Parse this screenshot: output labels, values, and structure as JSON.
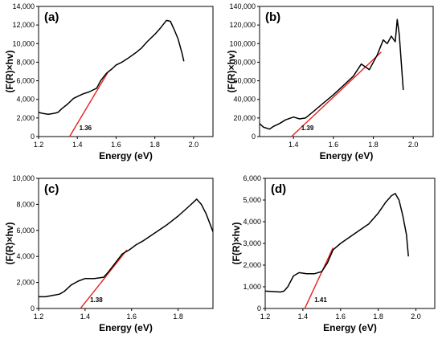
{
  "chart_data": [
    {
      "panel_label": "(a)",
      "type": "line",
      "xlabel": "Energy (eV)",
      "ylabel": "(F(R)×hv)",
      "xlim": [
        1.2,
        2.1
      ],
      "ylim": [
        0,
        14000
      ],
      "xticks": [
        1.2,
        1.4,
        1.6,
        1.8,
        2.0
      ],
      "xtick_labels": [
        "1.2",
        "1.4",
        "1.6",
        "1.8",
        "2.0"
      ],
      "yticks": [
        0,
        2000,
        4000,
        6000,
        8000,
        10000,
        12000,
        14000
      ],
      "ytick_labels": [
        "0",
        "2,000",
        "4,000",
        "6,000",
        "8,000",
        "10,000",
        "12,000",
        "14,000"
      ],
      "series": [
        {
          "x": [
            1.2,
            1.22,
            1.25,
            1.28,
            1.3,
            1.32,
            1.35,
            1.38,
            1.4,
            1.43,
            1.46,
            1.5,
            1.52,
            1.55,
            1.58,
            1.6,
            1.63,
            1.66,
            1.7,
            1.73,
            1.76,
            1.8,
            1.83,
            1.86,
            1.88,
            1.9,
            1.92,
            1.94,
            1.95
          ],
          "y": [
            2600,
            2500,
            2400,
            2500,
            2600,
            3000,
            3500,
            4100,
            4300,
            4600,
            4800,
            5200,
            6000,
            6800,
            7300,
            7700,
            8000,
            8400,
            9000,
            9500,
            10200,
            11000,
            11700,
            12500,
            12400,
            11500,
            10500,
            9000,
            8100
          ]
        }
      ],
      "fit": {
        "x": [
          1.36,
          1.56
        ],
        "y": [
          0,
          7000
        ]
      },
      "annotation": "1.36"
    },
    {
      "panel_label": "(b)",
      "type": "line",
      "xlabel": "Energy (eV)",
      "ylabel": "(F(R)×hv)",
      "xlim": [
        1.23,
        2.1
      ],
      "ylim": [
        0,
        140000
      ],
      "xticks": [
        1.4,
        1.6,
        1.8,
        2.0
      ],
      "xtick_labels": [
        "1.4",
        "1.6",
        "1.8",
        "2.0"
      ],
      "yticks": [
        0,
        20000,
        40000,
        60000,
        80000,
        100000,
        120000,
        140000
      ],
      "ytick_labels": [
        "0",
        "20,000",
        "40,000",
        "60,000",
        "80,000",
        "100,000",
        "120,000",
        "140,000"
      ],
      "series": [
        {
          "x": [
            1.23,
            1.25,
            1.28,
            1.3,
            1.33,
            1.36,
            1.4,
            1.43,
            1.46,
            1.5,
            1.55,
            1.6,
            1.65,
            1.7,
            1.74,
            1.78,
            1.82,
            1.85,
            1.87,
            1.89,
            1.91,
            1.92,
            1.93,
            1.94,
            1.95
          ],
          "y": [
            14000,
            10000,
            8000,
            11000,
            14000,
            18000,
            21000,
            19000,
            20000,
            27000,
            36000,
            45000,
            55000,
            65000,
            78000,
            72000,
            88000,
            104000,
            100000,
            108000,
            102000,
            126000,
            110000,
            80000,
            50000
          ]
        }
      ],
      "fit": {
        "x": [
          1.39,
          1.84
        ],
        "y": [
          0,
          91000
        ]
      },
      "annotation": "1.39"
    },
    {
      "panel_label": "(c)",
      "type": "line",
      "xlabel": "Energy (eV)",
      "ylabel": "(F(R)×hv)",
      "xlim": [
        1.2,
        1.95
      ],
      "ylim": [
        0,
        10000
      ],
      "xticks": [
        1.2,
        1.4,
        1.6,
        1.8
      ],
      "xtick_labels": [
        "1.2",
        "1.4",
        "1.6",
        "1.8"
      ],
      "yticks": [
        0,
        2000,
        4000,
        6000,
        8000,
        10000
      ],
      "ytick_labels": [
        "0",
        "2,000",
        "4,000",
        "6,000",
        "8,000",
        "10,000"
      ],
      "series": [
        {
          "x": [
            1.2,
            1.23,
            1.26,
            1.29,
            1.31,
            1.34,
            1.37,
            1.4,
            1.44,
            1.48,
            1.5,
            1.53,
            1.56,
            1.59,
            1.62,
            1.65,
            1.7,
            1.75,
            1.8,
            1.85,
            1.88,
            1.9,
            1.92,
            1.95
          ],
          "y": [
            900,
            900,
            1000,
            1100,
            1300,
            1800,
            2100,
            2300,
            2300,
            2400,
            2800,
            3500,
            4200,
            4500,
            4900,
            5200,
            5800,
            6400,
            7100,
            7900,
            8400,
            8000,
            7300,
            5900
          ]
        }
      ],
      "fit": {
        "x": [
          1.38,
          1.58
        ],
        "y": [
          0,
          4500
        ]
      },
      "annotation": "1.38"
    },
    {
      "panel_label": "(d)",
      "type": "line",
      "xlabel": "Energy (eV)",
      "ylabel": "(F(R)×hv)",
      "xlim": [
        1.2,
        2.1
      ],
      "ylim": [
        0,
        6000
      ],
      "xticks": [
        1.2,
        1.4,
        1.6,
        1.8,
        2.0
      ],
      "xtick_labels": [
        "1.2",
        "1.4",
        "1.6",
        "1.8",
        "2.0"
      ],
      "yticks": [
        0,
        1000,
        2000,
        3000,
        4000,
        5000,
        6000
      ],
      "ytick_labels": [
        "0",
        "1,000",
        "2,000",
        "3,000",
        "4,000",
        "5,000",
        "6,000"
      ],
      "series": [
        {
          "x": [
            1.2,
            1.24,
            1.28,
            1.3,
            1.32,
            1.35,
            1.38,
            1.42,
            1.46,
            1.5,
            1.53,
            1.56,
            1.6,
            1.65,
            1.7,
            1.75,
            1.8,
            1.84,
            1.87,
            1.89,
            1.91,
            1.93,
            1.95,
            1.96
          ],
          "y": [
            800,
            780,
            760,
            800,
            1000,
            1500,
            1650,
            1600,
            1600,
            1700,
            2100,
            2700,
            3000,
            3300,
            3600,
            3900,
            4400,
            4900,
            5200,
            5300,
            5000,
            4300,
            3400,
            2400
          ]
        }
      ],
      "fit": {
        "x": [
          1.41,
          1.56
        ],
        "y": [
          0,
          2800
        ]
      },
      "annotation": "1.41"
    }
  ]
}
